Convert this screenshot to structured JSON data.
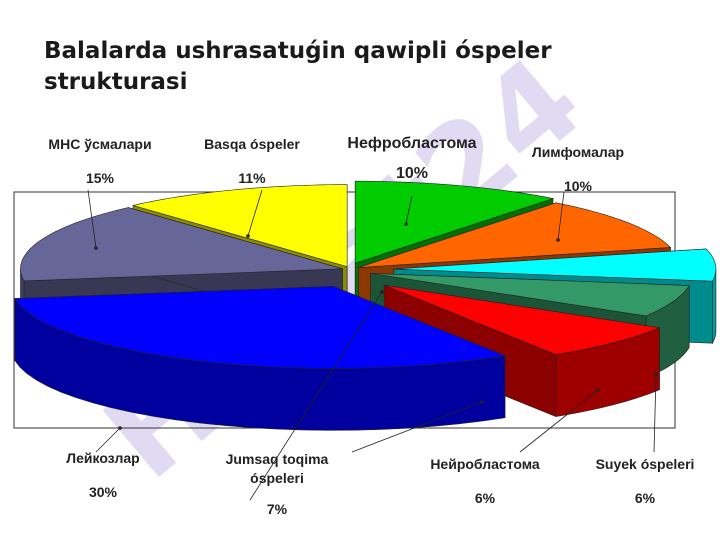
{
  "slide": {
    "title": "Balalarda ushrasatuǵin qawipli óspeler strukturasi"
  },
  "watermark": {
    "text": "Hujjat24"
  },
  "chart_data": {
    "type": "pie",
    "title": "Balalarda ushrasatuǵin qawipli óspeler strukturasi",
    "legend": "none",
    "slices": [
      {
        "label": "Нефробластома",
        "value": 10,
        "value_label": "10%",
        "color": "#00cc00"
      },
      {
        "label": "Лимфомалар",
        "value": 10,
        "value_label": "10%",
        "color": "#ff6600"
      },
      {
        "label": "Suyek óspeleri",
        "value": 6,
        "value_label": "6%",
        "color": "#00ffff"
      },
      {
        "label": "Нейробластома",
        "value": 6,
        "value_label": "6%",
        "color": "#339966"
      },
      {
        "label": "Jumsaq toqima óspeleri",
        "value": 7,
        "value_label": "7%",
        "color": "#ff0000"
      },
      {
        "label": "Лейкозлар",
        "value": 30,
        "value_label": "30%",
        "color": "#0000ff"
      },
      {
        "label": "МНС ўсмалари",
        "value": 15,
        "value_label": "15%",
        "color": "#666699"
      },
      {
        "label": "Basqa óspeler",
        "value": 11,
        "value_label": "11%",
        "color": "#ffff00"
      }
    ]
  }
}
